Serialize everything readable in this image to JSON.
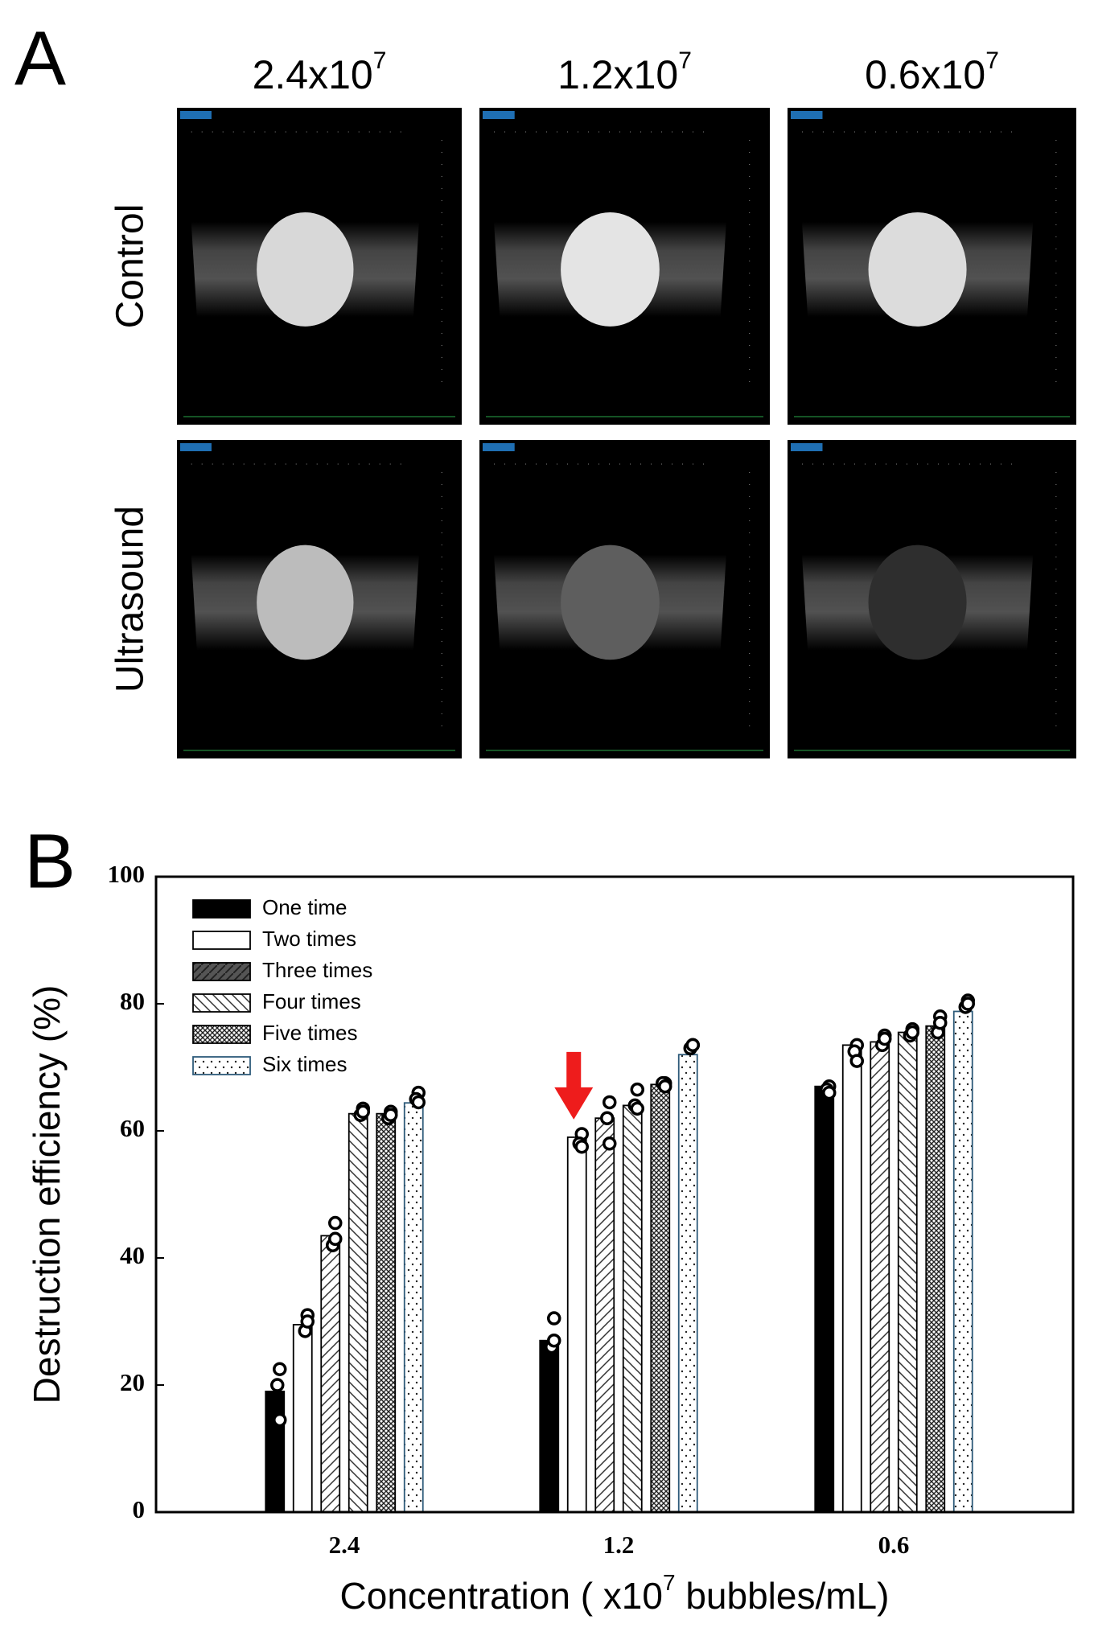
{
  "panel_a": {
    "label": "A",
    "columns": [
      {
        "base": "2.4x10",
        "exp": "7"
      },
      {
        "base": "1.2x10",
        "exp": "7"
      },
      {
        "base": "0.6x10",
        "exp": "7"
      }
    ],
    "rows": [
      "Control",
      "Ultrasound"
    ]
  },
  "chart_data": {
    "type": "bar",
    "panel_label": "B",
    "ylabel": "Destruction efficiency (%)",
    "xlabel": {
      "before": "Concentration ( x10",
      "exp": "7",
      "after": " bubbles/mL)"
    },
    "categories": [
      "2.4",
      "1.2",
      "0.6"
    ],
    "ylim": [
      0,
      100
    ],
    "yticks": [
      0,
      20,
      40,
      60,
      80,
      100
    ],
    "legend": "upper left",
    "series": [
      {
        "name": "One time",
        "color": "#000000",
        "pattern": "solid",
        "values": [
          19,
          27,
          67
        ],
        "points": [
          [
            22.5,
            20,
            14.5
          ],
          [
            30.5,
            26,
            27
          ],
          [
            67,
            66.5,
            66
          ]
        ]
      },
      {
        "name": "Two times",
        "color": "#000000",
        "pattern": "none",
        "values": [
          29.5,
          59,
          73.5
        ],
        "points": [
          [
            31,
            28.5,
            30
          ],
          [
            59.5,
            58,
            57.5
          ],
          [
            73.5,
            72.5,
            71
          ]
        ]
      },
      {
        "name": "Three times",
        "color": "#000000",
        "pattern": "hatch",
        "values": [
          43.5,
          62,
          74
        ],
        "points": [
          [
            45.5,
            42,
            43
          ],
          [
            64.5,
            62,
            58
          ],
          [
            75,
            73.5,
            74.5
          ]
        ]
      },
      {
        "name": "Four times",
        "color": "#000000",
        "pattern": "backhatch",
        "values": [
          62.7,
          64,
          75.5
        ],
        "points": [
          [
            63.5,
            62.5,
            63
          ],
          [
            66.5,
            64,
            63.5
          ],
          [
            76,
            75,
            75.5
          ]
        ]
      },
      {
        "name": "Five times",
        "color": "#000000",
        "pattern": "crosshatch",
        "values": [
          62.7,
          67.3,
          76.5
        ],
        "points": [
          [
            63,
            62,
            62.5
          ],
          [
            67.5,
            67.5,
            67
          ],
          [
            78,
            75.5,
            77
          ]
        ]
      },
      {
        "name": "Six times",
        "color": "#2e5b7a",
        "pattern": "dots",
        "values": [
          64.4,
          72,
          78.8
        ],
        "points": [
          [
            66,
            65,
            64.5
          ],
          [
            73.5,
            73,
            73.5
          ],
          [
            80.5,
            79.5,
            80
          ]
        ]
      }
    ]
  }
}
